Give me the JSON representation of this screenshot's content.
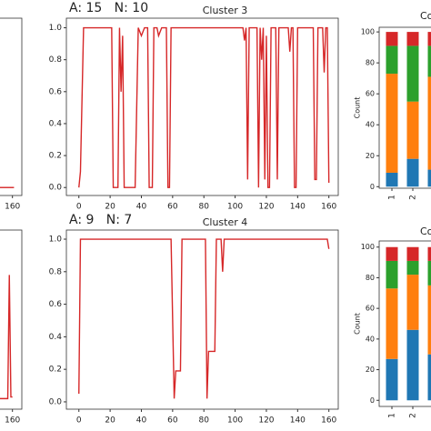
{
  "chart_data": [
    {
      "type": "line",
      "x": [
        152,
        156,
        160,
        161
      ],
      "series": [
        {
          "color": "#d62728",
          "values": [
            0,
            0,
            0,
            0
          ]
        }
      ],
      "xlim": [
        -8,
        166
      ],
      "ylim": [
        -0.05,
        1.06
      ],
      "xticks": [
        160
      ]
    },
    {
      "type": "line",
      "title": "Cluster 3",
      "annotation": "A: 15   N: 10",
      "x": [
        0,
        1,
        3,
        21,
        22,
        25,
        26,
        27,
        28,
        29,
        36,
        38,
        40,
        42,
        44,
        45,
        47,
        48,
        50,
        51,
        53,
        56,
        57,
        58,
        59,
        105,
        106,
        107,
        108,
        109,
        114,
        115,
        116,
        117,
        118,
        119,
        120,
        121,
        122,
        123,
        126,
        127,
        128,
        134,
        135,
        136,
        137,
        138,
        139,
        140,
        150,
        151,
        152,
        153,
        156,
        157,
        158,
        159,
        160
      ],
      "series": [
        {
          "color": "#d62728",
          "values": [
            0,
            0.1,
            1,
            1,
            0,
            0,
            1,
            0.6,
            0.95,
            0,
            0,
            1,
            0.95,
            1,
            1,
            0,
            0,
            1,
            1,
            0.95,
            1,
            1,
            0,
            0,
            1,
            1,
            0.92,
            1,
            0.05,
            1,
            1,
            0,
            1,
            0.8,
            1,
            0.05,
            0.95,
            0,
            0,
            1,
            1,
            0.05,
            1,
            1,
            0.85,
            1,
            1,
            0,
            0,
            1,
            1,
            0.05,
            0.05,
            1,
            1,
            0.72,
            1,
            1,
            0.03
          ]
        }
      ],
      "xlim": [
        -8,
        166
      ],
      "ylim": [
        -0.05,
        1.06
      ],
      "xticks": [
        0,
        20,
        40,
        60,
        80,
        100,
        120,
        140,
        160
      ],
      "yticks": [
        {
          "value": 0,
          "label": "0.0"
        },
        {
          "value": 0.2,
          "label": "0.2"
        },
        {
          "value": 0.4,
          "label": "0.4"
        },
        {
          "value": 0.6,
          "label": "0.6"
        },
        {
          "value": 0.8,
          "label": "0.8"
        },
        {
          "value": 1,
          "label": "1.0"
        }
      ]
    },
    {
      "type": "bar",
      "title": "Cou",
      "ylabel": "Count",
      "categories": [
        "1",
        "2",
        null
      ],
      "series": [
        {
          "color": "#1f77b4",
          "values": [
            9,
            18,
            11
          ]
        },
        {
          "color": "#ff7f0e",
          "values": [
            64,
            37,
            60
          ]
        },
        {
          "color": "#2ca02c",
          "values": [
            18,
            36,
            20
          ]
        },
        {
          "color": "#d62728",
          "values": [
            9,
            9,
            9
          ]
        }
      ],
      "ylim": [
        -1,
        103
      ],
      "yticks": [
        0,
        20,
        40,
        60,
        80,
        100
      ]
    },
    {
      "type": "line",
      "x": [
        152,
        157,
        158,
        159,
        160
      ],
      "series": [
        {
          "color": "#d62728",
          "values": [
            0.02,
            0.02,
            0.78,
            0.03,
            0.03
          ]
        }
      ],
      "xlim": [
        -8,
        166
      ],
      "ylim": [
        -0.045,
        1.056
      ],
      "xticks": [
        160
      ]
    },
    {
      "type": "line",
      "title": "Cluster 4",
      "annotation": "A: 9   N: 7",
      "x": [
        0,
        1,
        59,
        61,
        62,
        65,
        66,
        81,
        82,
        83,
        87,
        88,
        91,
        92,
        93,
        159,
        160
      ],
      "series": [
        {
          "color": "#d62728",
          "values": [
            0.05,
            1,
            1,
            0.02,
            0.19,
            0.19,
            1,
            1,
            0.02,
            0.31,
            0.31,
            1,
            1,
            0.8,
            1,
            1,
            0.94
          ]
        }
      ],
      "xlim": [
        -8,
        166
      ],
      "ylim": [
        -0.045,
        1.056
      ],
      "xticks": [
        0,
        20,
        40,
        60,
        80,
        100,
        120,
        140,
        160
      ],
      "yticks": [
        {
          "value": 0,
          "label": "0.0"
        },
        {
          "value": 0.2,
          "label": "0.2"
        },
        {
          "value": 0.4,
          "label": "0.4"
        },
        {
          "value": 0.6,
          "label": "0.6"
        },
        {
          "value": 0.8,
          "label": "0.8"
        },
        {
          "value": 1,
          "label": "1.0"
        }
      ]
    },
    {
      "type": "bar",
      "title": "Cou",
      "ylabel": "Count",
      "categories": [
        "1",
        "2",
        null
      ],
      "series": [
        {
          "color": "#1f77b4",
          "values": [
            27,
            46,
            30
          ]
        },
        {
          "color": "#ff7f0e",
          "values": [
            46,
            36,
            45
          ]
        },
        {
          "color": "#2ca02c",
          "values": [
            18,
            9,
            16
          ]
        },
        {
          "color": "#d62728",
          "values": [
            9,
            9,
            9
          ]
        }
      ],
      "ylim": [
        -4,
        104
      ],
      "yticks": [
        0,
        20,
        40,
        60,
        80,
        100
      ]
    }
  ]
}
